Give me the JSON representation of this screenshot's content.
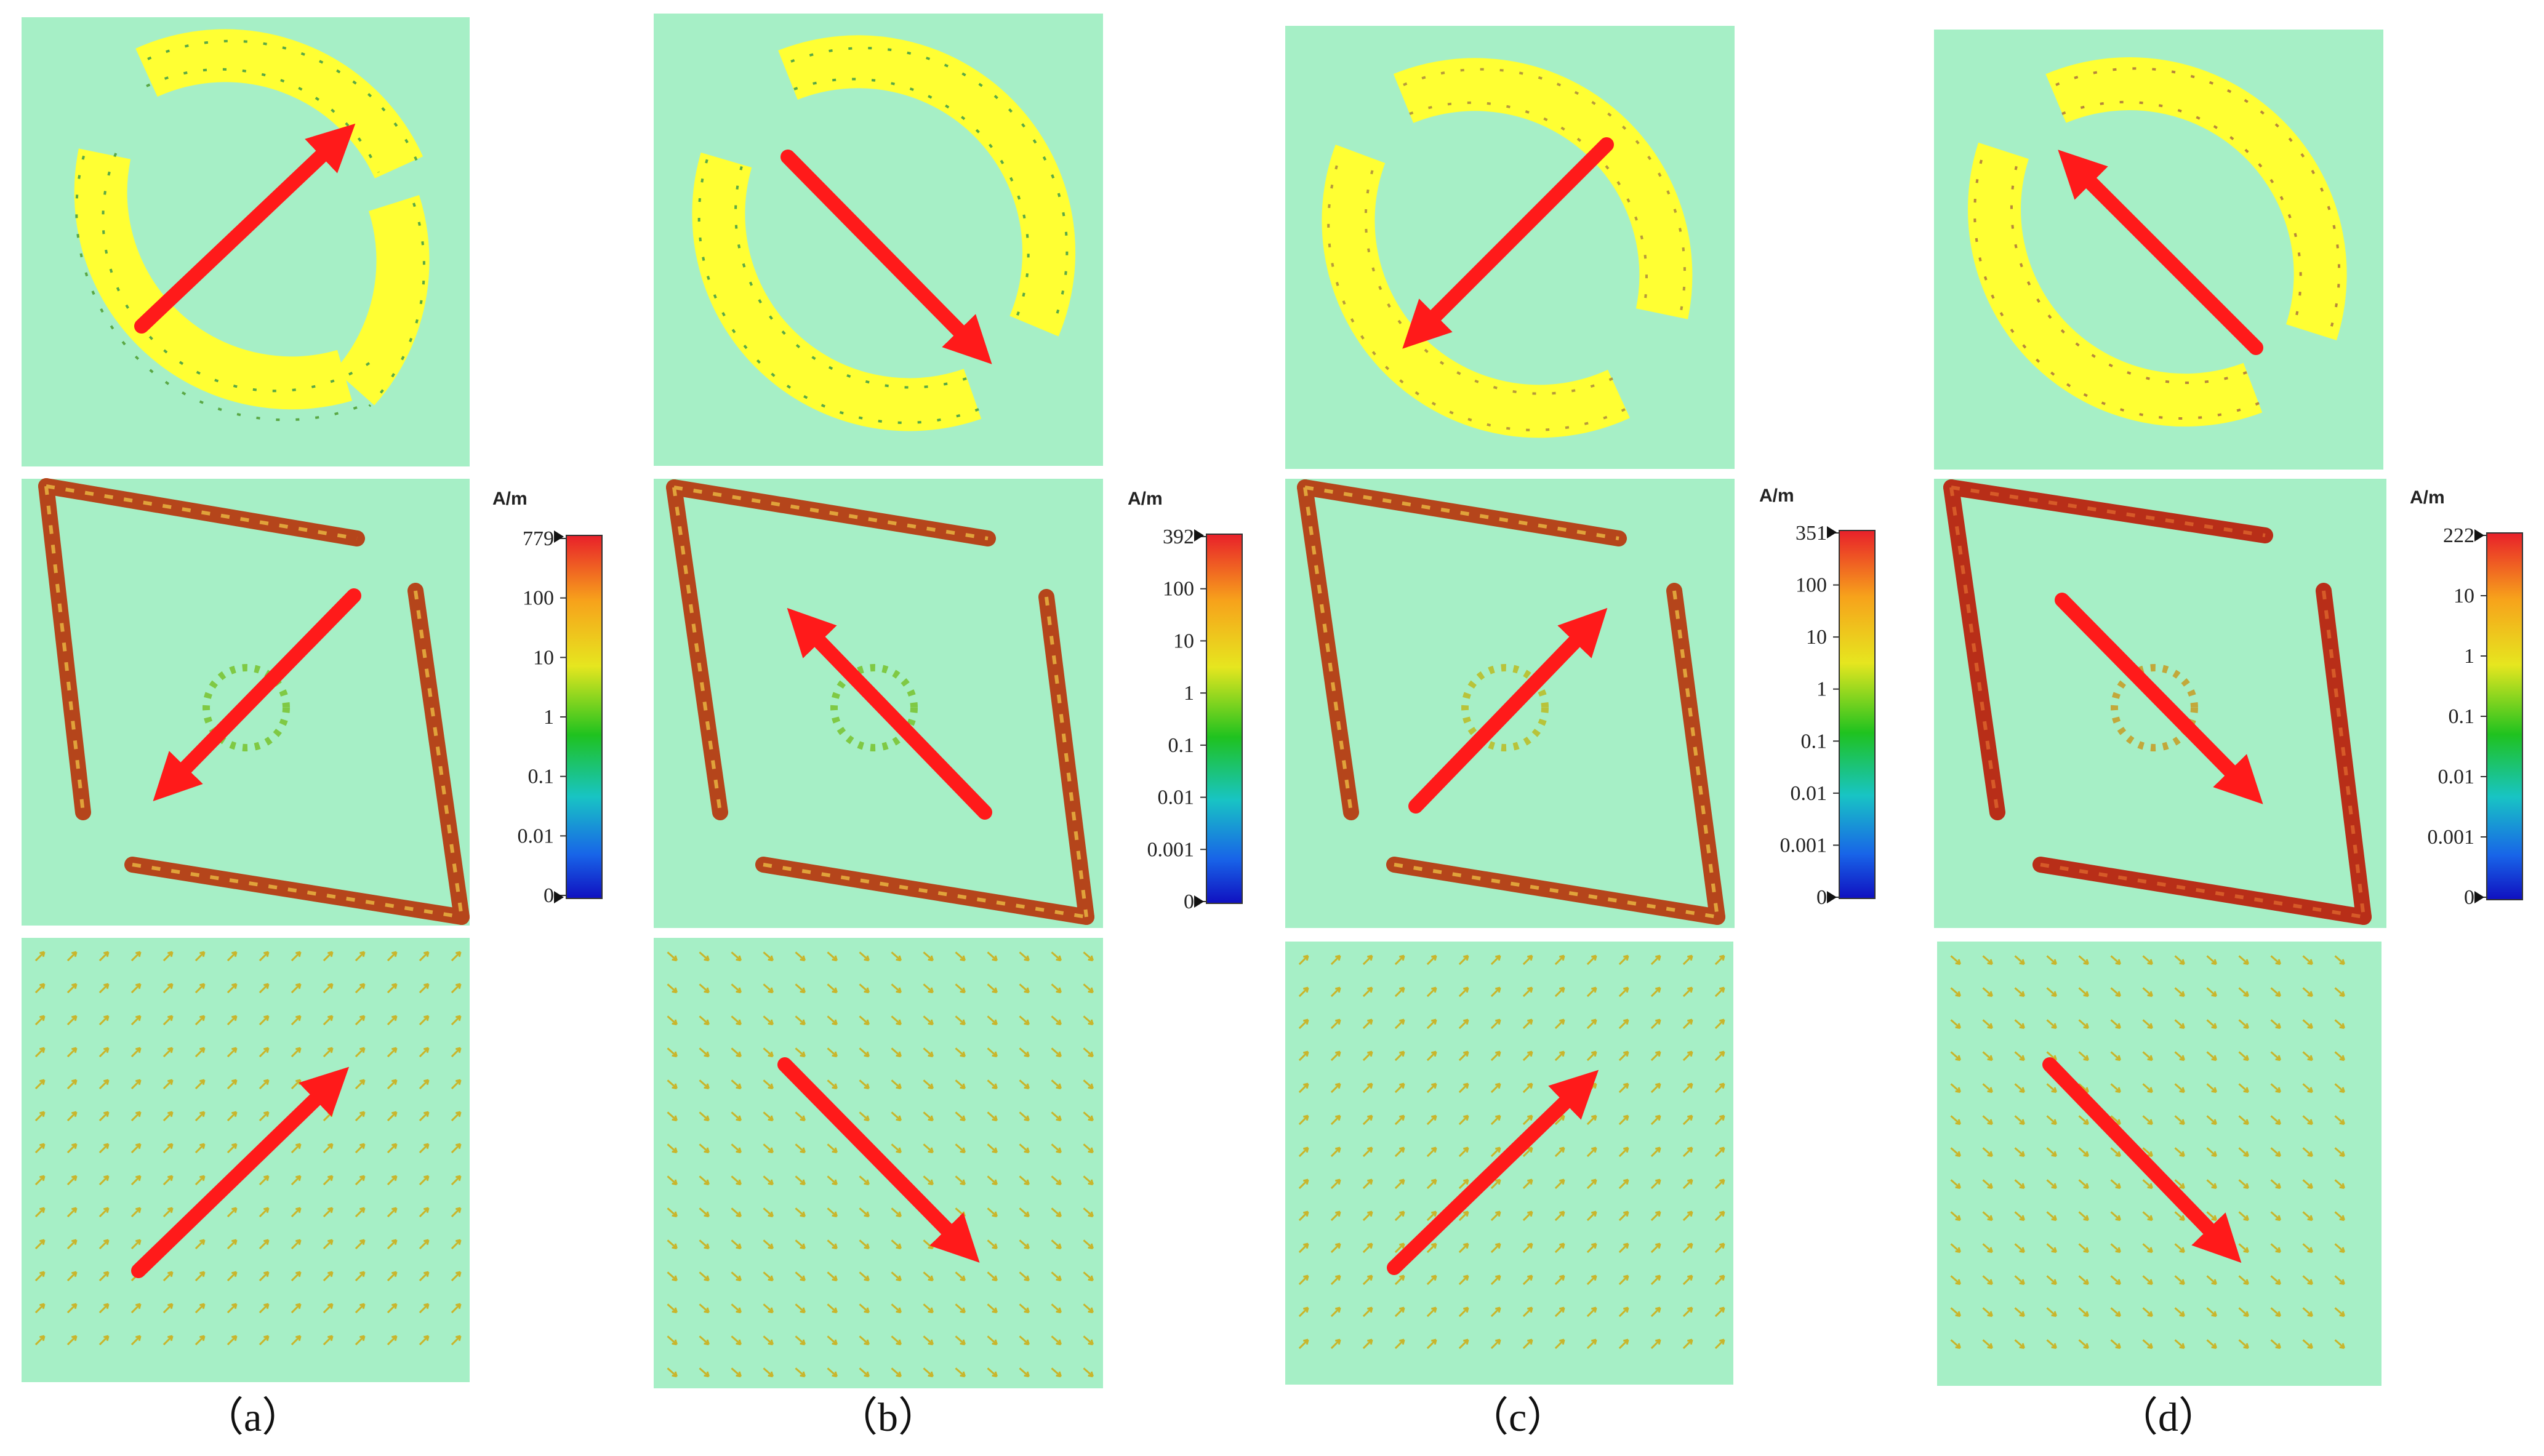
{
  "columns": [
    {
      "caption": "（a）",
      "colorbar": {
        "unit": "A/m",
        "labels": [
          "779",
          "100",
          "10",
          "1",
          "0.1",
          "0.01",
          "0"
        ]
      }
    },
    {
      "caption": "（b）",
      "colorbar": {
        "unit": "A/m",
        "labels": [
          "392",
          "100",
          "10",
          "1",
          "0.1",
          "0.01",
          "0.001",
          "0"
        ]
      }
    },
    {
      "caption": "（c）",
      "colorbar": {
        "unit": "A/m",
        "labels": [
          "351",
          "100",
          "10",
          "1",
          "0.1",
          "0.01",
          "0.001",
          "0"
        ]
      }
    },
    {
      "caption": "（d）",
      "colorbar": {
        "unit": "A/m",
        "labels": [
          "222",
          "10",
          "1",
          "0.1",
          "0.01",
          "0.001",
          "0"
        ]
      }
    }
  ],
  "colors": {
    "panel_background": "#a6efc6",
    "split_ring": "#ffff33",
    "direction_arrow": "#ff1a1a",
    "field_arrow": "#c9b52b",
    "strip_arrow": "#b5451b",
    "colorbar_gradient": [
      "#e8202a",
      "#f7a21b",
      "#e6e61f",
      "#1fc21f",
      "#18c4c4",
      "#1864e8",
      "#1010c0"
    ]
  },
  "direction_arrows": [
    [
      "northeast",
      "southwest",
      "northeast"
    ],
    [
      "southeast",
      "northwest",
      "southeast"
    ],
    [
      "southwest",
      "northeast",
      "northeast"
    ],
    [
      "northwest",
      "southeast",
      "southeast"
    ]
  ]
}
